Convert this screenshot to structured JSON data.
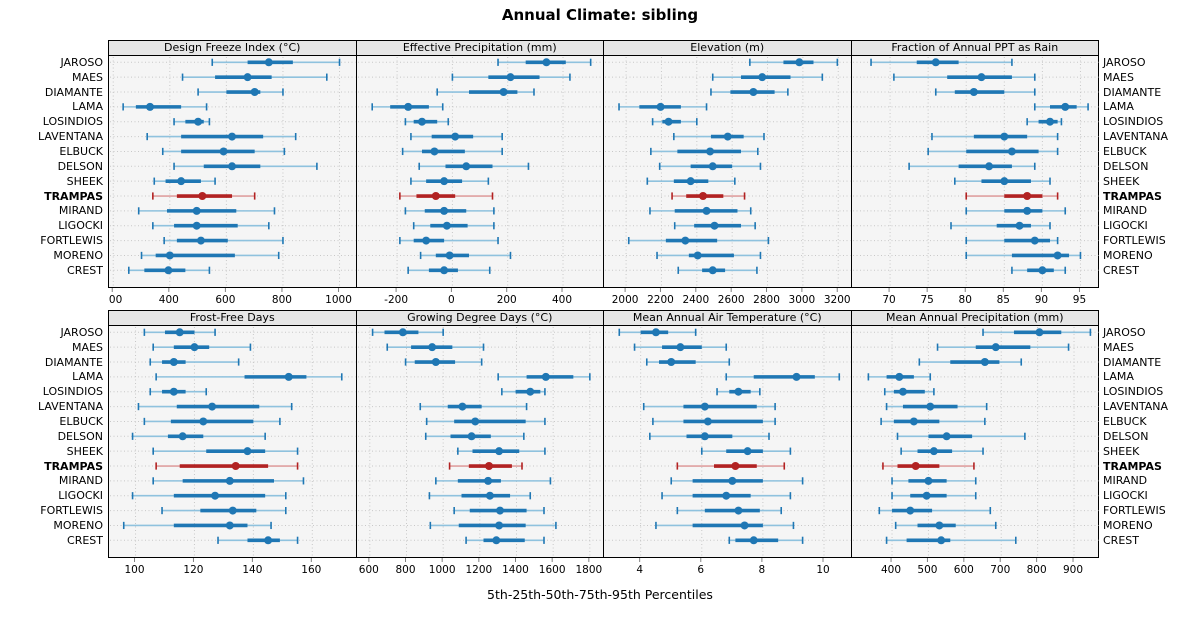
{
  "title": "Annual Climate: sibling",
  "caption": "5th-25th-50th-75th-95th Percentiles",
  "percentiles": [
    "5th",
    "25th",
    "50th",
    "75th",
    "95th"
  ],
  "sites": [
    "JAROSO",
    "MAES",
    "DIAMANTE",
    "LAMA",
    "LOSINDIOS",
    "LAVENTANA",
    "ELBUCK",
    "DELSON",
    "SHEEK",
    "TRAMPAS",
    "MIRAND",
    "LIGOCKI",
    "FORTLEWIS",
    "MORENO",
    "CREST"
  ],
  "highlight_site": "TRAMPAS",
  "colors": {
    "normal": "#1f77b4",
    "normal_light": "#8fc2de",
    "highlight": "#b22222",
    "highlight_light": "#dfa0a0",
    "grid": "#c8c8c8",
    "strip_bg": "#e6e6e6",
    "panel_bg": "#f5f5f5",
    "tick": "#808080"
  },
  "chart_data": [
    {
      "type": "dotplot",
      "title": "Design Freeze Index (°C)",
      "xlim": [
        185,
        1060
      ],
      "ticks": [
        200,
        400,
        600,
        800,
        1000
      ],
      "tick_labels": [
        "200",
        "400",
        "600",
        "800",
        "1000"
      ],
      "values": [
        [
          550,
          675,
          750,
          835,
          1000
        ],
        [
          445,
          560,
          675,
          760,
          955
        ],
        [
          500,
          600,
          700,
          720,
          800
        ],
        [
          235,
          280,
          330,
          440,
          530
        ],
        [
          415,
          455,
          500,
          520,
          540
        ],
        [
          320,
          440,
          620,
          730,
          845
        ],
        [
          375,
          440,
          590,
          700,
          805
        ],
        [
          415,
          520,
          620,
          720,
          920
        ],
        [
          345,
          385,
          440,
          510,
          560
        ],
        [
          340,
          425,
          515,
          620,
          700
        ],
        [
          290,
          390,
          495,
          635,
          770
        ],
        [
          340,
          415,
          495,
          640,
          750
        ],
        [
          380,
          425,
          510,
          605,
          800
        ],
        [
          300,
          350,
          400,
          630,
          785
        ],
        [
          255,
          310,
          395,
          455,
          540
        ]
      ]
    },
    {
      "type": "dotplot",
      "title": "Effective Precipitation (mm)",
      "xlim": [
        -345,
        550
      ],
      "ticks": [
        -200,
        0,
        200,
        400
      ],
      "tick_labels": [
        "-200",
        "0",
        "200",
        "400"
      ],
      "values": [
        [
          165,
          265,
          340,
          410,
          500
        ],
        [
          0,
          130,
          210,
          315,
          425
        ],
        [
          -55,
          60,
          185,
          235,
          295
        ],
        [
          -290,
          -225,
          -160,
          -85,
          -35
        ],
        [
          -170,
          -140,
          -110,
          -55,
          -15
        ],
        [
          -150,
          -75,
          10,
          75,
          180
        ],
        [
          -180,
          -110,
          -65,
          45,
          180
        ],
        [
          -120,
          -25,
          50,
          145,
          275
        ],
        [
          -150,
          -95,
          -30,
          35,
          130
        ],
        [
          -190,
          -130,
          -60,
          10,
          145
        ],
        [
          -170,
          -100,
          -30,
          50,
          150
        ],
        [
          -140,
          -80,
          -20,
          55,
          150
        ],
        [
          -190,
          -140,
          -95,
          -30,
          165
        ],
        [
          -115,
          -60,
          -10,
          60,
          210
        ],
        [
          -160,
          -85,
          -30,
          20,
          135
        ]
      ]
    },
    {
      "type": "dotplot",
      "title": "Elevation (m)",
      "xlim": [
        1875,
        3275
      ],
      "ticks": [
        2000,
        2200,
        2400,
        2600,
        2800,
        3000,
        3200
      ],
      "tick_labels": [
        "2000",
        "2200",
        "2400",
        "2600",
        "2800",
        "3000",
        "3200"
      ],
      "values": [
        [
          2700,
          2890,
          2980,
          3060,
          3195
        ],
        [
          2490,
          2650,
          2770,
          2930,
          3110
        ],
        [
          2480,
          2590,
          2720,
          2840,
          2915
        ],
        [
          1960,
          2075,
          2195,
          2310,
          2455
        ],
        [
          2150,
          2205,
          2240,
          2310,
          2400
        ],
        [
          2270,
          2480,
          2575,
          2665,
          2780
        ],
        [
          2140,
          2290,
          2475,
          2650,
          2745
        ],
        [
          2190,
          2365,
          2490,
          2600,
          2760
        ],
        [
          2120,
          2270,
          2365,
          2465,
          2615
        ],
        [
          2260,
          2340,
          2435,
          2550,
          2670
        ],
        [
          2135,
          2275,
          2455,
          2630,
          2705
        ],
        [
          2275,
          2385,
          2500,
          2650,
          2730
        ],
        [
          2015,
          2225,
          2335,
          2515,
          2805
        ],
        [
          2175,
          2355,
          2405,
          2610,
          2760
        ],
        [
          2295,
          2430,
          2490,
          2560,
          2740
        ]
      ]
    },
    {
      "type": "dotplot",
      "title": "Fraction of Annual PPT as Rain",
      "xlim": [
        65,
        97.5
      ],
      "ticks": [
        70,
        75,
        80,
        85,
        90,
        95
      ],
      "tick_labels": [
        "70",
        "75",
        "80",
        "85",
        "90",
        "95"
      ],
      "values": [
        [
          67.5,
          73.5,
          76,
          79,
          86
        ],
        [
          70.5,
          77.5,
          82,
          86,
          89
        ],
        [
          76,
          78.5,
          81,
          85,
          89
        ],
        [
          89,
          91,
          93,
          94.5,
          96
        ],
        [
          88,
          89.5,
          91,
          92,
          92.5
        ],
        [
          75.5,
          81,
          85,
          88,
          92
        ],
        [
          75,
          80,
          86,
          89.5,
          92
        ],
        [
          72.5,
          79,
          83,
          86,
          89
        ],
        [
          78.5,
          82,
          85,
          88.5,
          91
        ],
        [
          80,
          85,
          88,
          90,
          92
        ],
        [
          80,
          85,
          88,
          90,
          93
        ],
        [
          78,
          84,
          87,
          88.5,
          91
        ],
        [
          80,
          85,
          89,
          91,
          92
        ],
        [
          80,
          86,
          92,
          93.5,
          95
        ],
        [
          86,
          88,
          90,
          91.5,
          93
        ]
      ]
    },
    {
      "type": "dotplot",
      "title": "Frost-Free Days",
      "xlim": [
        91,
        175
      ],
      "ticks": [
        100,
        120,
        140,
        160
      ],
      "tick_labels": [
        "100",
        "120",
        "140",
        "160"
      ],
      "values": [
        [
          103,
          110,
          115,
          120,
          127
        ],
        [
          106,
          113,
          120,
          125,
          139
        ],
        [
          105,
          109,
          113,
          117,
          135
        ],
        [
          107,
          137,
          152,
          158,
          170
        ],
        [
          105,
          109,
          113,
          117,
          124
        ],
        [
          101,
          114,
          126,
          142,
          153
        ],
        [
          103,
          112,
          123,
          140,
          149
        ],
        [
          99,
          111,
          116,
          123,
          144
        ],
        [
          106,
          124,
          138,
          144,
          155
        ],
        [
          107,
          115,
          134,
          145,
          155
        ],
        [
          106,
          116,
          132,
          147,
          157
        ],
        [
          99,
          113,
          127,
          144,
          151
        ],
        [
          109,
          122,
          133,
          141,
          151
        ],
        [
          96,
          113,
          132,
          138,
          146
        ],
        [
          128,
          138,
          145,
          149,
          155
        ]
      ]
    },
    {
      "type": "dotplot",
      "title": "Growing Degree Days (°C)",
      "xlim": [
        530,
        1880
      ],
      "ticks": [
        600,
        800,
        1000,
        1200,
        1400,
        1600,
        1800
      ],
      "tick_labels": [
        "600",
        "800",
        "1000",
        "1200",
        "1400",
        "1600",
        "1800"
      ],
      "values": [
        [
          615,
          680,
          780,
          865,
          1000
        ],
        [
          695,
          825,
          940,
          1050,
          1220
        ],
        [
          795,
          845,
          960,
          1065,
          1210
        ],
        [
          1300,
          1455,
          1560,
          1710,
          1800
        ],
        [
          1320,
          1395,
          1475,
          1530,
          1555
        ],
        [
          875,
          1025,
          1105,
          1210,
          1455
        ],
        [
          910,
          1060,
          1175,
          1450,
          1555
        ],
        [
          905,
          1040,
          1155,
          1260,
          1440
        ],
        [
          1080,
          1160,
          1305,
          1415,
          1555
        ],
        [
          1035,
          1140,
          1250,
          1375,
          1430
        ],
        [
          960,
          1080,
          1245,
          1315,
          1585
        ],
        [
          925,
          1100,
          1255,
          1365,
          1475
        ],
        [
          1060,
          1145,
          1310,
          1455,
          1550
        ],
        [
          930,
          1085,
          1305,
          1450,
          1615
        ],
        [
          1125,
          1220,
          1290,
          1445,
          1550
        ]
      ]
    },
    {
      "type": "dotplot",
      "title": "Mean Annual Air Temperature (°C)",
      "xlim": [
        2.8,
        10.9
      ],
      "ticks": [
        4,
        6,
        8,
        10
      ],
      "tick_labels": [
        "4",
        "6",
        "8",
        "10"
      ],
      "values": [
        [
          3.3,
          4.0,
          4.5,
          4.9,
          5.8
        ],
        [
          3.8,
          4.7,
          5.3,
          6.0,
          6.8
        ],
        [
          4.2,
          4.6,
          5.0,
          5.8,
          6.9
        ],
        [
          6.8,
          7.7,
          9.1,
          9.7,
          10.5
        ],
        [
          6.5,
          6.9,
          7.2,
          7.6,
          7.9
        ],
        [
          4.1,
          5.4,
          6.1,
          7.8,
          8.4
        ],
        [
          4.4,
          5.4,
          6.2,
          8.0,
          8.4
        ],
        [
          4.3,
          5.5,
          6.1,
          7.0,
          8.2
        ],
        [
          6.0,
          6.8,
          7.5,
          8.0,
          8.9
        ],
        [
          5.2,
          6.4,
          7.1,
          7.8,
          8.7
        ],
        [
          5.0,
          5.7,
          7.0,
          8.0,
          9.3
        ],
        [
          4.7,
          5.7,
          6.8,
          7.6,
          8.9
        ],
        [
          5.2,
          6.1,
          7.2,
          7.9,
          8.6
        ],
        [
          4.5,
          5.7,
          7.4,
          8.0,
          9.0
        ],
        [
          6.9,
          7.1,
          7.7,
          8.5,
          9.3
        ]
      ]
    },
    {
      "type": "dotplot",
      "title": "Mean Annual Precipitation (mm)",
      "xlim": [
        290,
        970
      ],
      "ticks": [
        400,
        500,
        600,
        700,
        800,
        900
      ],
      "tick_labels": [
        "400",
        "500",
        "600",
        "700",
        "800",
        "900"
      ],
      "values": [
        [
          650,
          735,
          805,
          865,
          945
        ],
        [
          525,
          630,
          685,
          780,
          885
        ],
        [
          475,
          560,
          655,
          695,
          755
        ],
        [
          335,
          385,
          420,
          460,
          505
        ],
        [
          380,
          405,
          430,
          490,
          515
        ],
        [
          385,
          430,
          505,
          580,
          660
        ],
        [
          370,
          405,
          460,
          530,
          655
        ],
        [
          415,
          500,
          550,
          620,
          765
        ],
        [
          425,
          470,
          515,
          565,
          650
        ],
        [
          375,
          415,
          465,
          530,
          625
        ],
        [
          400,
          445,
          500,
          550,
          630
        ],
        [
          400,
          450,
          495,
          550,
          630
        ],
        [
          365,
          400,
          450,
          510,
          670
        ],
        [
          410,
          470,
          530,
          575,
          685
        ],
        [
          385,
          440,
          535,
          560,
          740
        ]
      ]
    }
  ]
}
